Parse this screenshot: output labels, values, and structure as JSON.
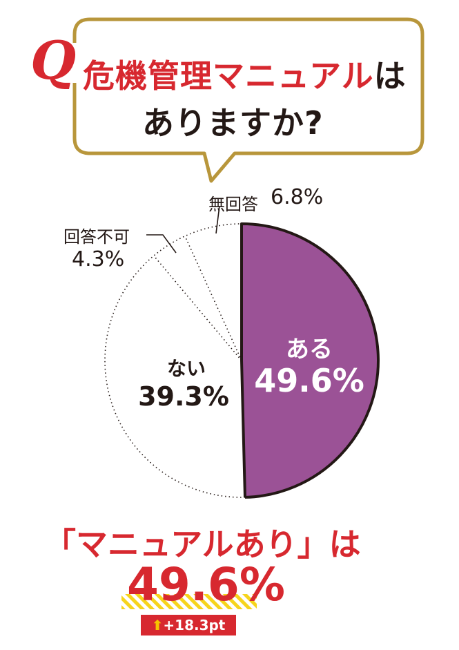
{
  "question": {
    "badge": "Q",
    "line1_red": "危機管理マニュアル",
    "line1_dark": "は",
    "line2": "ありますか?"
  },
  "chart_data": {
    "type": "pie",
    "slices": [
      {
        "label": "ある",
        "value": 49.6,
        "display": "49.6%",
        "color": "#9b5296"
      },
      {
        "label": "ない",
        "value": 39.3,
        "display": "39.3%",
        "color": "#ffffff"
      },
      {
        "label": "回答不可",
        "value": 4.3,
        "display": "4.3%",
        "color": "#ffffff"
      },
      {
        "label": "無回答",
        "value": 6.8,
        "display": "6.8%",
        "color": "#ffffff"
      }
    ],
    "start": "12 o'clock",
    "direction": "clockwise"
  },
  "summary": {
    "line1": "「マニュアルあり」は",
    "value": "49.6%",
    "delta_icon": "up-arrow-icon",
    "delta": "+18.3pt"
  },
  "colors": {
    "accent_red": "#d7282f",
    "gold": "#b8963b",
    "purple": "#9b5296",
    "highlight_yellow": "#f6d41c"
  }
}
